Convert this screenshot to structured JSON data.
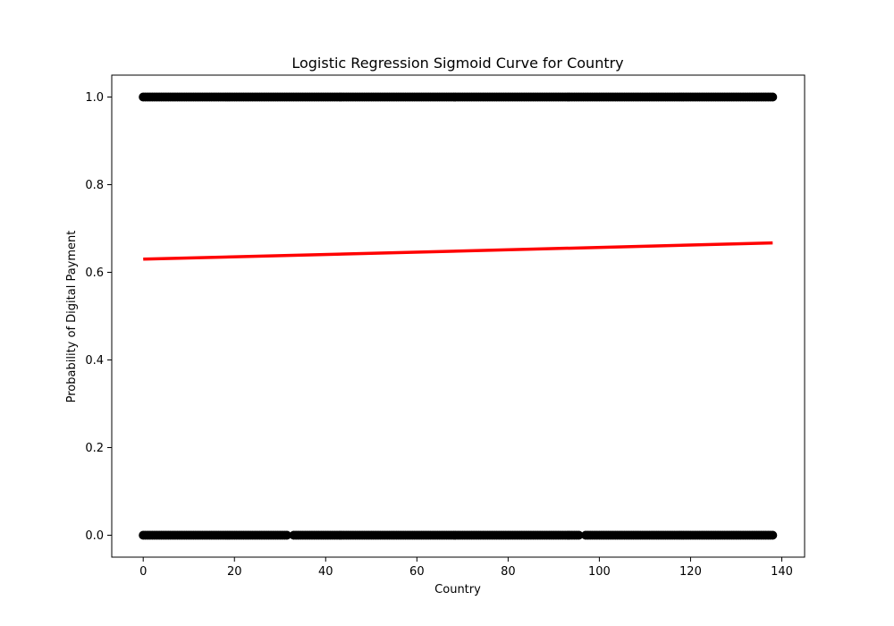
{
  "chart_data": {
    "type": "scatter",
    "title": "Logistic Regression Sigmoid Curve for Country",
    "xlabel": "Country",
    "ylabel": "Probability of Digital Payment",
    "xlim": [
      -6.9,
      145.0
    ],
    "ylim": [
      -0.05,
      1.05
    ],
    "x_ticks": [
      0,
      20,
      40,
      60,
      80,
      100,
      120,
      140
    ],
    "x_tick_labels": [
      "0",
      "20",
      "40",
      "60",
      "80",
      "100",
      "120",
      "140"
    ],
    "y_ticks": [
      0.0,
      0.2,
      0.4,
      0.6,
      0.8,
      1.0
    ],
    "y_tick_labels": [
      "0.0",
      "0.2",
      "0.4",
      "0.6",
      "0.8",
      "1.0"
    ],
    "grid": false,
    "series": [
      {
        "kind": "scatter",
        "color": "#000000",
        "observations": [
          {
            "y": 1,
            "x_range": [
              0,
              138
            ]
          },
          {
            "y": 0,
            "x_range": [
              0,
              138
            ]
          }
        ]
      },
      {
        "kind": "line",
        "color": "#ff0000",
        "x": [
          0,
          138
        ],
        "y": [
          0.63,
          0.667
        ]
      }
    ]
  }
}
